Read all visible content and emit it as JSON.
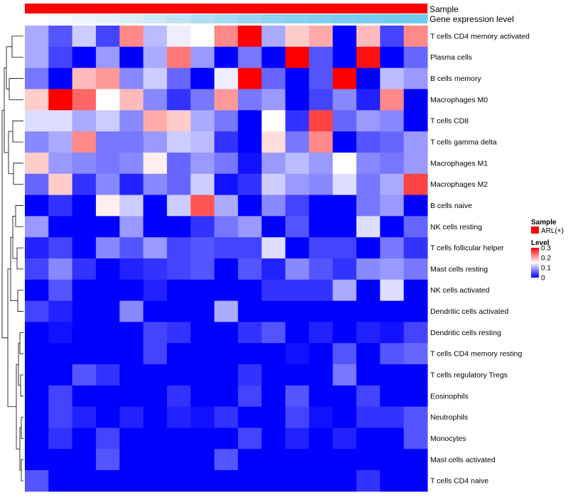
{
  "chart_data": {
    "type": "heatmap",
    "title": "",
    "annotation_tracks": [
      {
        "name": "Sample",
        "label": "Sample"
      },
      {
        "name": "Gene expression level",
        "label": "Gene expression level"
      }
    ],
    "columns": 17,
    "gene_expression_level_gradient": [
      "#ffffff",
      "#f6fafd",
      "#eef6fb",
      "#e4f2fa",
      "#d8edf8",
      "#cce8f6",
      "#bfe3f4",
      "#b2def3",
      "#a6d9f2",
      "#9bd5f1",
      "#90d2f0",
      "#87d0f0",
      "#80cff0",
      "#7acef0",
      "#76cdf0",
      "#73ccf0",
      "#71ccf0"
    ],
    "sample_color": "#ff0000",
    "rows": [
      "T cells CD4 memory activated",
      "Plasma cells",
      "B cells memory",
      "Macrophages M0",
      "T cells CD8",
      "T cells gamma delta",
      "Macrophages M1",
      "Macrophages M2",
      "B cells naive",
      "NK cells resting",
      "T cells follicular helper",
      "Mast cells resting",
      "NK cells activated",
      "Dendritic cells activated",
      "Dendritic cells resting",
      "T cells CD4 memory resting",
      "T cells regulatory  Tregs",
      "Eosinophils",
      "Neutrophils",
      "Monocytes",
      "Mast cells activated",
      "T cells CD4 naive"
    ],
    "values": [
      [
        0.1,
        0.05,
        0.12,
        0.04,
        0.22,
        0.11,
        0.14,
        0.15,
        0.22,
        0.3,
        0.1,
        0.18,
        0.2,
        0.0,
        0.19,
        0.04,
        0.22
      ],
      [
        0.1,
        0.04,
        0.0,
        0.09,
        0.0,
        0.1,
        0.23,
        0.09,
        0.0,
        0.07,
        0.0,
        0.3,
        0.05,
        0.0,
        0.29,
        0.0,
        0.06
      ],
      [
        0.07,
        0.0,
        0.19,
        0.21,
        0.08,
        0.12,
        0.06,
        0.0,
        0.14,
        0.3,
        0.06,
        0.0,
        0.05,
        0.3,
        0.0,
        0.11,
        0.09
      ],
      [
        0.18,
        0.3,
        0.24,
        0.15,
        0.19,
        0.08,
        0.03,
        0.07,
        0.21,
        0.07,
        0.09,
        0.0,
        0.04,
        0.08,
        0.02,
        0.22,
        0.0
      ],
      [
        0.13,
        0.13,
        0.1,
        0.12,
        0.08,
        0.2,
        0.18,
        0.1,
        0.07,
        0.0,
        0.15,
        0.03,
        0.26,
        0.06,
        0.09,
        0.08,
        0.0
      ],
      [
        0.08,
        0.1,
        0.22,
        0.07,
        0.07,
        0.09,
        0.12,
        0.11,
        0.03,
        0.0,
        0.17,
        0.07,
        0.22,
        0.0,
        0.05,
        0.06,
        0.09
      ],
      [
        0.18,
        0.09,
        0.08,
        0.07,
        0.08,
        0.16,
        0.06,
        0.09,
        0.07,
        0.01,
        0.09,
        0.11,
        0.09,
        0.15,
        0.08,
        0.07,
        0.09
      ],
      [
        0.06,
        0.18,
        0.03,
        0.08,
        0.02,
        0.08,
        0.06,
        0.12,
        0.01,
        0.03,
        0.12,
        0.09,
        0.08,
        0.13,
        0.07,
        0.1,
        0.26
      ],
      [
        0.0,
        0.03,
        0.0,
        0.16,
        0.12,
        0.0,
        0.12,
        0.25,
        0.1,
        0.0,
        0.08,
        0.04,
        0.0,
        0.0,
        0.07,
        0.09,
        0.0
      ],
      [
        0.09,
        0.0,
        0.0,
        0.0,
        0.09,
        0.0,
        0.0,
        0.03,
        0.07,
        0.09,
        0.0,
        0.05,
        0.0,
        0.0,
        0.13,
        0.0,
        0.06
      ],
      [
        0.02,
        0.04,
        0.0,
        0.08,
        0.05,
        0.09,
        0.04,
        0.05,
        0.04,
        0.04,
        0.13,
        0.0,
        0.04,
        0.04,
        0.0,
        0.07,
        0.03
      ],
      [
        0.04,
        0.08,
        0.03,
        0.0,
        0.02,
        0.03,
        0.04,
        0.05,
        0.0,
        0.05,
        0.02,
        0.08,
        0.05,
        0.03,
        0.08,
        0.09,
        0.07
      ],
      [
        0.0,
        0.05,
        0.0,
        0.0,
        0.0,
        0.02,
        0.0,
        0.0,
        0.0,
        0.0,
        0.03,
        0.03,
        0.03,
        0.1,
        0.0,
        0.13,
        0.0
      ],
      [
        0.04,
        0.02,
        0.0,
        0.0,
        0.08,
        0.0,
        0.0,
        0.0,
        0.1,
        0.0,
        0.0,
        0.0,
        0.0,
        0.0,
        0.0,
        0.0,
        0.0
      ],
      [
        0.0,
        0.01,
        0.0,
        0.0,
        0.0,
        0.04,
        0.03,
        0.0,
        0.0,
        0.03,
        0.05,
        0.0,
        0.02,
        0.0,
        0.02,
        0.01,
        0.04
      ],
      [
        0.0,
        0.0,
        0.0,
        0.0,
        0.0,
        0.04,
        0.0,
        0.0,
        0.0,
        0.0,
        0.0,
        0.01,
        0.0,
        0.05,
        0.0,
        0.05,
        0.06
      ],
      [
        0.0,
        0.0,
        0.05,
        0.03,
        0.0,
        0.0,
        0.0,
        0.0,
        0.0,
        0.03,
        0.0,
        0.0,
        0.0,
        0.07,
        0.0,
        0.0,
        0.0
      ],
      [
        0.0,
        0.04,
        0.0,
        0.0,
        0.0,
        0.0,
        0.03,
        0.0,
        0.0,
        0.04,
        0.0,
        0.05,
        0.0,
        0.0,
        0.04,
        0.0,
        0.0
      ],
      [
        0.0,
        0.04,
        0.02,
        0.0,
        0.02,
        0.0,
        0.02,
        0.01,
        0.03,
        0.0,
        0.0,
        0.04,
        0.01,
        0.0,
        0.03,
        0.03,
        0.05
      ],
      [
        0.0,
        0.03,
        0.0,
        0.04,
        0.0,
        0.0,
        0.0,
        0.0,
        0.0,
        0.04,
        0.0,
        0.02,
        0.0,
        0.02,
        0.0,
        0.0,
        0.05
      ],
      [
        0.0,
        0.0,
        0.0,
        0.05,
        0.0,
        0.0,
        0.0,
        0.0,
        0.05,
        0.0,
        0.0,
        0.0,
        0.0,
        0.0,
        0.0,
        0.0,
        0.0
      ],
      [
        0.05,
        0.0,
        0.0,
        0.0,
        0.0,
        0.0,
        0.0,
        0.0,
        0.0,
        0.0,
        0.0,
        0.0,
        0.0,
        0.0,
        0.03,
        0.0,
        0.0
      ]
    ],
    "color_scale": {
      "min": 0,
      "mid": 0.15,
      "max": 0.3,
      "low": "#0000ff",
      "midcolor": "#ffffff",
      "high": "#ff0000"
    },
    "legend": {
      "sample_title": "Sample",
      "sample_entry": "ARL(+)",
      "level_title": "Level",
      "level_ticks": [
        "0.3",
        "0.2",
        "0.1",
        "0"
      ],
      "placement": "right"
    },
    "row_dendrogram": "left"
  }
}
